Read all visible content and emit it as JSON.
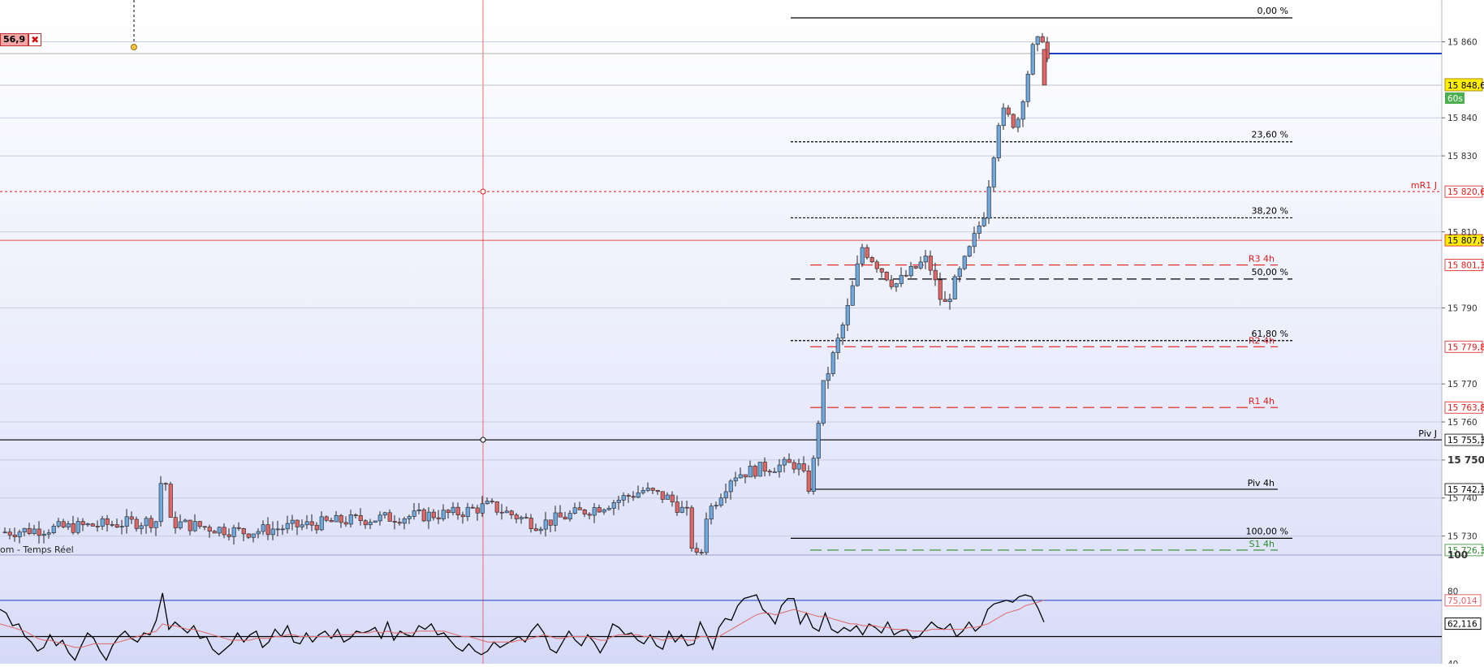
{
  "chart_data": [
    {
      "type": "candlestick",
      "instrument_label_fragment": "om - Temps Réel",
      "y_range": [
        15725,
        15871
      ],
      "y_ticks": [
        "15 860",
        "15 840",
        "15 830",
        "15 810",
        "15 790",
        "15 770",
        "15 760",
        "15 750",
        "15 740",
        "15 730"
      ],
      "last_price": "15 848,6",
      "countdown": "60s",
      "order_tag": "56,9",
      "colors": {
        "up": "#6fa8dc",
        "down": "#e06666",
        "fib": "#000000",
        "pivot_red": "#e21b1b",
        "pivot_green": "#2e8b2e",
        "price_line": "#1f3fbf"
      },
      "fibonacci": [
        {
          "label": "0,00 %",
          "price": 15866.3,
          "style": "solid"
        },
        {
          "label": "23,60 %",
          "price": 15833.7,
          "style": "dotted"
        },
        {
          "label": "38,20 %",
          "price": 15813.7,
          "style": "dotted"
        },
        {
          "label": "50,00 %",
          "price": 15797.6,
          "style": "dashed"
        },
        {
          "label": "61,80 %",
          "price": 15781.4,
          "style": "dotted"
        },
        {
          "label": "100,00 %",
          "price": 15729.4,
          "style": "solid"
        }
      ],
      "levels": [
        {
          "label": "mR1 J",
          "price": 15820.6,
          "price_label": "15 820,6",
          "color": "#e21b1b",
          "style": "dotted",
          "span": "full"
        },
        {
          "label": "",
          "price": 15807.8,
          "price_label": "15 807,8",
          "color": "#e21b1b",
          "style": "thin",
          "span": "full",
          "highlight": true
        },
        {
          "label": "R3 4h",
          "price": 15801.3,
          "price_label": "15 801,3",
          "color": "#e21b1b",
          "style": "dashed",
          "span": "right"
        },
        {
          "label": "R2 4h",
          "price": 15779.8,
          "price_label": "15 779,8",
          "color": "#e21b1b",
          "style": "dashed",
          "span": "right"
        },
        {
          "label": "R1 4h",
          "price": 15763.8,
          "price_label": "15 763,8",
          "color": "#e21b1b",
          "style": "dashed",
          "span": "right"
        },
        {
          "label": "Piv J",
          "price": 15755.3,
          "price_label": "15 755,3",
          "color": "#000000",
          "style": "solid",
          "span": "full"
        },
        {
          "label": "Piv 4h",
          "price": 15742.3,
          "price_label": "15 742,3",
          "color": "#000000",
          "style": "solid",
          "span": "right"
        },
        {
          "label": "S1 4h",
          "price": 15726.3,
          "price_label": "15 726,3",
          "color": "#2e8b2e",
          "style": "dashed",
          "span": "right"
        }
      ],
      "price_lines": [
        {
          "price": 15856.9,
          "color": "#1f3fbf"
        }
      ],
      "bold_tick": "15 750"
    },
    {
      "type": "line",
      "indicator": "oscillator",
      "y_range": [
        40,
        100
      ],
      "y_ticks": [
        "100",
        "80",
        "40"
      ],
      "upper_level": 75,
      "lower_level": 55,
      "values_labels": {
        "signal": "75,014",
        "main": "62,116"
      },
      "series": [
        {
          "name": "",
          "color": "#000000",
          "values": [
            70,
            68,
            61,
            62,
            55,
            52,
            47,
            49,
            56,
            50,
            53,
            46,
            42,
            50,
            57,
            54,
            47,
            42,
            50,
            55,
            58,
            54,
            52,
            57,
            56,
            64,
            79,
            59,
            63,
            60,
            57,
            61,
            54,
            55,
            48,
            45,
            48,
            51,
            57,
            52,
            56,
            58,
            49,
            52,
            59,
            55,
            61,
            52,
            51,
            57,
            52,
            56,
            58,
            54,
            59,
            52,
            54,
            58,
            57,
            58,
            60,
            54,
            63,
            53,
            58,
            56,
            55,
            61,
            59,
            62,
            56,
            57,
            53,
            49,
            47,
            51,
            47,
            45,
            47,
            52,
            49,
            51,
            53,
            55,
            52,
            58,
            62,
            57,
            48,
            46,
            52,
            58,
            53,
            50,
            56,
            52,
            46,
            52,
            62,
            60,
            56,
            57,
            53,
            51,
            56,
            50,
            48,
            58,
            52,
            56,
            50,
            51,
            63,
            56,
            48,
            60,
            65,
            64,
            72,
            76,
            77,
            78,
            70,
            67,
            62,
            72,
            76,
            76,
            62,
            68,
            60,
            58,
            68,
            59,
            57,
            60,
            58,
            61,
            56,
            62,
            60,
            57,
            63,
            56,
            58,
            59,
            54,
            55,
            59,
            63,
            60,
            59,
            62,
            55,
            58,
            63,
            58,
            61,
            70,
            73,
            74,
            75,
            74,
            77,
            78,
            77,
            71,
            63
          ]
        },
        {
          "name": "",
          "color": "#e06666",
          "values": [
            62,
            61,
            60,
            59,
            58,
            56,
            54,
            53,
            53,
            52,
            51,
            50,
            49,
            49,
            50,
            51,
            51,
            51,
            51,
            52,
            53,
            54,
            55,
            56,
            57,
            58,
            62,
            61,
            61,
            60,
            59,
            59,
            58,
            57,
            56,
            55,
            54,
            53,
            53,
            53,
            53,
            54,
            54,
            54,
            55,
            55,
            56,
            56,
            55,
            55,
            55,
            55,
            55,
            55,
            56,
            56,
            56,
            57,
            57,
            57,
            58,
            57,
            58,
            57,
            57,
            57,
            57,
            58,
            58,
            58,
            58,
            58,
            57,
            56,
            55,
            55,
            54,
            53,
            52,
            52,
            52,
            52,
            52,
            53,
            53,
            54,
            55,
            56,
            55,
            54,
            54,
            55,
            55,
            55,
            55,
            54,
            53,
            53,
            55,
            56,
            56,
            56,
            56,
            55,
            55,
            54,
            53,
            54,
            54,
            54,
            53,
            53,
            55,
            55,
            54,
            55,
            57,
            59,
            61,
            63,
            65,
            67,
            68,
            68,
            67,
            68,
            69,
            70,
            69,
            68,
            67,
            66,
            66,
            65,
            64,
            63,
            62,
            62,
            61,
            61,
            61,
            60,
            60,
            59,
            59,
            59,
            58,
            58,
            58,
            59,
            59,
            59,
            59,
            59,
            59,
            60,
            60,
            61,
            62,
            64,
            66,
            68,
            69,
            70,
            72,
            73,
            74,
            75
          ]
        }
      ]
    }
  ]
}
